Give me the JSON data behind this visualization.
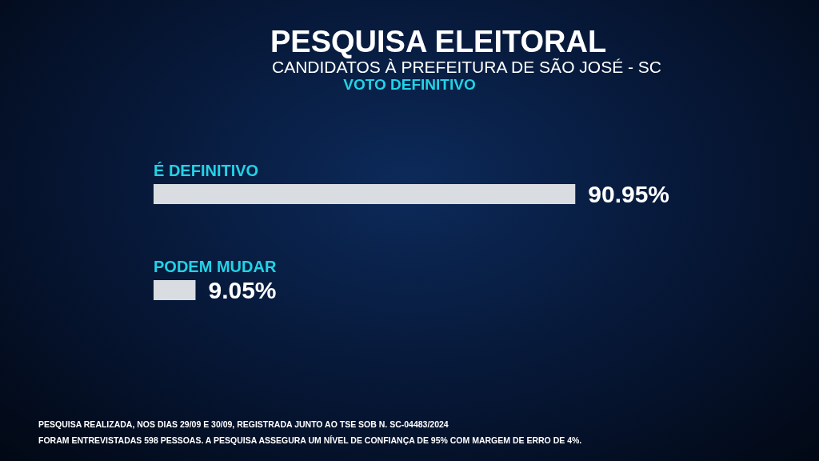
{
  "chart_data": {
    "type": "bar",
    "orientation": "horizontal",
    "title": "PESQUISA ELEITORAL",
    "subtitle": "CANDIDATOS À PREFEITURA DE SÃO JOSÉ - SC",
    "xlabel": "VOTO DEFINITIVO",
    "categories": [
      "É DEFINITIVO",
      "PODEM MUDAR"
    ],
    "values": [
      90.95,
      9.05
    ],
    "color": "#d9dce1",
    "value_labels": [
      "90.95%",
      "9.05%"
    ],
    "annotations": [
      "PESQUISA REALIZADA, NOS DIAS 29/09 E 30/09, REGISTRADA JUNTO AO TSE SOB N. SC-04483/2024",
      "FORAM ENTREVISTADAS 598 PESSOAS. A PESQUISA ASSEGURA UM NÍVEL DE CONFIANÇA DE 95% COM MARGEM DE ERRO DE 4%."
    ]
  }
}
